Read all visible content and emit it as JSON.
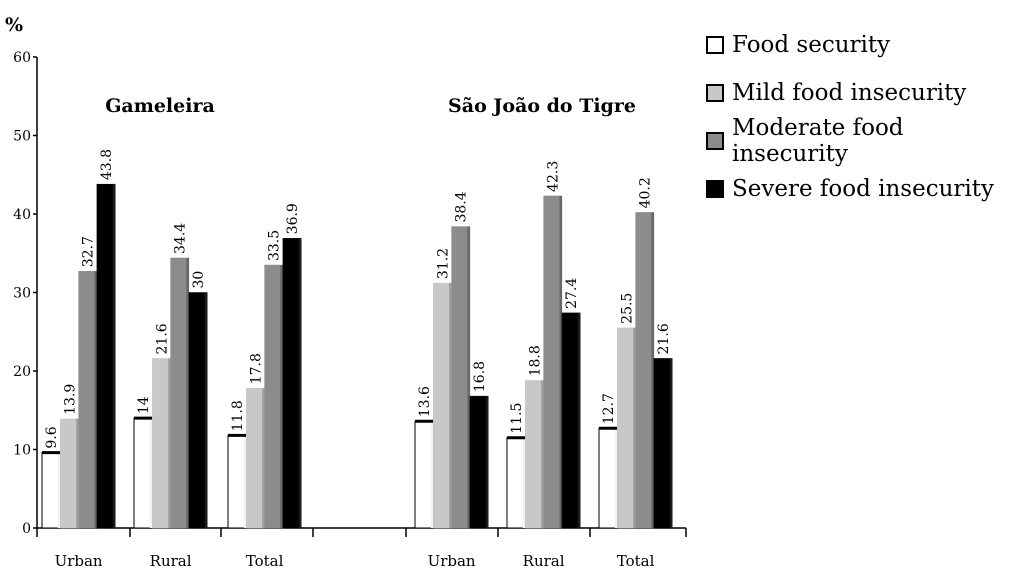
{
  "chart_data": {
    "type": "bar",
    "ylabel": "%",
    "ylim": [
      0,
      60
    ],
    "yticks": [
      0,
      10,
      20,
      30,
      40,
      50,
      60
    ],
    "groups": [
      {
        "title": "Gameleira",
        "categories": [
          "Urban",
          "Rural",
          "Total"
        ],
        "series": [
          {
            "name": "Food security",
            "values": [
              9.6,
              14,
              11.8
            ],
            "labels": [
              "9.6",
              "14",
              "11.8"
            ]
          },
          {
            "name": "Mild food insecurity",
            "values": [
              13.9,
              21.6,
              17.8
            ],
            "labels": [
              "13.9",
              "21.6",
              "17.8"
            ]
          },
          {
            "name": "Moderate food insecurity",
            "values": [
              32.7,
              34.4,
              33.5
            ],
            "labels": [
              "32.7",
              "34.4",
              "33.5"
            ]
          },
          {
            "name": "Severe food insecurity",
            "values": [
              43.8,
              30,
              36.9
            ],
            "labels": [
              "43.8",
              "30",
              "36.9"
            ]
          }
        ]
      },
      {
        "title": "São João do Tigre",
        "categories": [
          "Urban",
          "Rural",
          "Total"
        ],
        "series": [
          {
            "name": "Food security",
            "values": [
              13.6,
              11.5,
              12.7
            ],
            "labels": [
              "13.6",
              "11.5",
              "12.7"
            ]
          },
          {
            "name": "Mild food insecurity",
            "values": [
              31.2,
              18.8,
              25.5
            ],
            "labels": [
              "31.2",
              "18.8",
              "25.5"
            ]
          },
          {
            "name": "Moderate food insecurity",
            "values": [
              38.4,
              42.3,
              40.2
            ],
            "labels": [
              "38.4",
              "42.3",
              "40.2"
            ]
          },
          {
            "name": "Severe food insecurity",
            "values": [
              16.8,
              27.4,
              21.6
            ],
            "labels": [
              "16.8",
              "27.4",
              "21.6"
            ]
          }
        ]
      }
    ],
    "legend": {
      "placement": "top-right",
      "entries": [
        "Food security",
        "Mild food insecurity",
        "Moderate food insecurity",
        "Severe food insecurity"
      ]
    },
    "colors": [
      "#ffffff",
      "#c8c8c8",
      "#8c8c8c",
      "#000000"
    ],
    "grid": false
  }
}
